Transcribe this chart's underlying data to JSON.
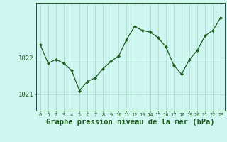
{
  "x": [
    0,
    1,
    2,
    3,
    4,
    5,
    6,
    7,
    8,
    9,
    10,
    11,
    12,
    13,
    14,
    15,
    16,
    17,
    18,
    19,
    20,
    21,
    22,
    23
  ],
  "y": [
    1022.35,
    1021.85,
    1021.95,
    1021.85,
    1021.65,
    1021.1,
    1021.35,
    1021.45,
    1021.7,
    1021.9,
    1022.05,
    1022.5,
    1022.85,
    1022.75,
    1022.7,
    1022.55,
    1022.3,
    1021.8,
    1021.55,
    1021.95,
    1022.2,
    1022.6,
    1022.75,
    1023.1
  ],
  "line_color": "#1a5c1a",
  "marker": "D",
  "marker_size": 2.2,
  "bg_color": "#cef5f0",
  "grid_color": "#aaddcc",
  "xlabel": "Graphe pression niveau de la mer (hPa)",
  "xlabel_fontsize": 7.5,
  "ytick_labels": [
    "1021",
    "1022"
  ],
  "ytick_values": [
    1021,
    1022
  ],
  "ylim": [
    1020.55,
    1023.5
  ],
  "xlim": [
    -0.5,
    23.5
  ],
  "xtick_fontsize": 5.0,
  "ytick_fontsize": 6.5
}
